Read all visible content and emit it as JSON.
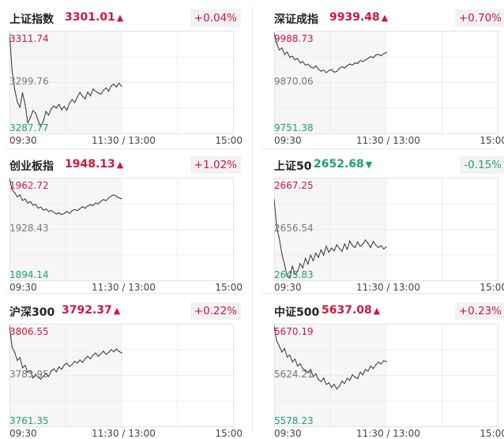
{
  "colors": {
    "up": "#d0163b",
    "down": "#1f9e76",
    "mid": "#777777",
    "line": "#333333"
  },
  "time_axis": {
    "open": "09:30",
    "midday": "11:30 / 13:00",
    "close": "15:00"
  },
  "panels": [
    {
      "name": "上证指数",
      "price": "3301.01",
      "arrow": "▲",
      "change": "+0.04%",
      "direction": "up",
      "y_high": "3311.74",
      "y_mid": "3299.76",
      "y_low": "3287.77",
      "chart_data": {
        "type": "line",
        "ylim": [
          3287.77,
          3311.74
        ],
        "values": [
          3311.2,
          3302.5,
          3298.0,
          3295.1,
          3293.8,
          3297.2,
          3294.5,
          3290.1,
          3291.3,
          3293.0,
          3292.4,
          3290.7,
          3289.2,
          3290.5,
          3292.8,
          3291.9,
          3293.4,
          3294.1,
          3293.6,
          3294.5,
          3293.2,
          3294.0,
          3293.1,
          3294.8,
          3295.6,
          3294.9,
          3296.2,
          3297.3,
          3296.4,
          3295.8,
          3297.4,
          3296.5,
          3298.1,
          3297.6,
          3297.2,
          3296.9,
          3297.8,
          3298.4,
          3297.6,
          3298.9,
          3299.3,
          3298.6,
          3299.5,
          3298.8
        ]
      }
    },
    {
      "name": "深证成指",
      "price": "9939.48",
      "arrow": "▲",
      "change": "+0.70%",
      "direction": "up",
      "y_high": "9988.73",
      "y_mid": "9870.06",
      "y_low": "9751.38",
      "chart_data": {
        "type": "line",
        "ylim": [
          9751.38,
          9988.73
        ],
        "values": [
          9985.0,
          9960.1,
          9945.5,
          9950.2,
          9935.1,
          9940.8,
          9928.3,
          9931.0,
          9922.4,
          9925.6,
          9915.2,
          9918.3,
          9910.0,
          9912.1,
          9905.3,
          9902.8,
          9908.4,
          9900.2,
          9895.6,
          9898.4,
          9892.1,
          9897.3,
          9899.8,
          9893.5,
          9895.0,
          9902.4,
          9906.1,
          9903.2,
          9908.7,
          9912.5,
          9910.0,
          9915.3,
          9913.8,
          9920.4,
          9918.2,
          9922.1,
          9925.5,
          9930.2,
          9927.4,
          9933.8,
          9935.2,
          9932.1,
          9936.7,
          9939.5
        ]
      }
    },
    {
      "name": "创业板指",
      "price": "1948.13",
      "arrow": "▲",
      "change": "+1.02%",
      "direction": "up",
      "y_high": "1962.72",
      "y_mid": "1928.43",
      "y_low": "1894.14",
      "chart_data": {
        "type": "line",
        "ylim": [
          1894.14,
          1962.72
        ],
        "values": [
          1962.5,
          1955.0,
          1953.0,
          1950.2,
          1951.5,
          1947.8,
          1948.8,
          1946.0,
          1947.0,
          1944.6,
          1945.2,
          1942.6,
          1943.4,
          1941.2,
          1942.0,
          1940.4,
          1941.0,
          1939.8,
          1938.6,
          1939.4,
          1938.2,
          1939.0,
          1940.3,
          1939.1,
          1940.8,
          1941.6,
          1940.9,
          1942.2,
          1943.6,
          1942.5,
          1944.1,
          1945.0,
          1944.3,
          1946.0,
          1945.4,
          1947.2,
          1948.4,
          1947.6,
          1949.5,
          1950.8,
          1951.6,
          1950.6,
          1949.6,
          1948.9
        ]
      }
    },
    {
      "name": "上证50",
      "price": "2652.68",
      "arrow": "▼",
      "change": "-0.15%",
      "direction": "down",
      "y_high": "2667.25",
      "y_mid": "2656.54",
      "y_low": "2645.83",
      "chart_data": {
        "type": "line",
        "ylim": [
          2645.83,
          2667.25
        ],
        "values": [
          2662.8,
          2657.0,
          2654.5,
          2651.2,
          2649.0,
          2646.5,
          2646.1,
          2648.7,
          2646.9,
          2647.5,
          2649.2,
          2648.3,
          2650.3,
          2649.1,
          2651.0,
          2649.8,
          2651.4,
          2650.5,
          2652.1,
          2651.0,
          2652.9,
          2651.6,
          2652.5,
          2651.9,
          2653.2,
          2652.4,
          2651.8,
          2653.4,
          2652.2,
          2654.0,
          2653.0,
          2652.6,
          2653.8,
          2652.9,
          2653.3,
          2654.2,
          2653.5,
          2652.6,
          2653.9,
          2653.1,
          2652.6,
          2653.0,
          2652.3,
          2652.7
        ]
      }
    },
    {
      "name": "沪深300",
      "price": "3792.37",
      "arrow": "▲",
      "change": "+0.22%",
      "direction": "up",
      "y_high": "3806.55",
      "y_mid": "3783.95",
      "y_low": "3761.35",
      "chart_data": {
        "type": "line",
        "ylim": [
          3761.35,
          3806.55
        ],
        "values": [
          3805.8,
          3796.4,
          3794.1,
          3790.5,
          3791.8,
          3787.2,
          3788.3,
          3785.1,
          3786.0,
          3782.6,
          3784.3,
          3783.0,
          3782.1,
          3783.5,
          3784.6,
          3783.3,
          3785.8,
          3786.7,
          3785.4,
          3787.6,
          3786.5,
          3788.4,
          3789.2,
          3787.8,
          3788.6,
          3790.1,
          3789.3,
          3790.7,
          3789.6,
          3791.3,
          3792.4,
          3791.2,
          3792.9,
          3793.8,
          3792.3,
          3793.4,
          3794.6,
          3793.2,
          3794.0,
          3795.3,
          3794.4,
          3795.6,
          3794.5,
          3793.8
        ]
      }
    },
    {
      "name": "中证500",
      "price": "5637.08",
      "arrow": "▲",
      "change": "+0.23%",
      "direction": "up",
      "y_high": "5670.19",
      "y_mid": "5624.21",
      "y_low": "5578.23",
      "chart_data": {
        "type": "line",
        "ylim": [
          5578.23,
          5670.19
        ],
        "values": [
          5668.5,
          5655.2,
          5650.4,
          5645.1,
          5648.3,
          5640.6,
          5642.4,
          5636.2,
          5638.7,
          5632.5,
          5634.4,
          5630.1,
          5628.6,
          5626.2,
          5629.4,
          5622.8,
          5625.3,
          5620.1,
          5618.3,
          5621.5,
          5615.6,
          5617.2,
          5613.0,
          5615.8,
          5611.5,
          5614.1,
          5618.7,
          5616.5,
          5621.2,
          5619.3,
          5624.5,
          5622.3,
          5621.0,
          5626.8,
          5624.6,
          5629.2,
          5627.8,
          5632.4,
          5630.1,
          5633.6,
          5635.9,
          5634.2,
          5637.3,
          5636.5
        ]
      }
    }
  ]
}
